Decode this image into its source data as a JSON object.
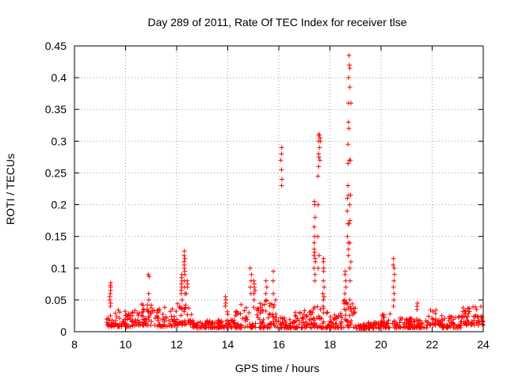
{
  "chart_data": {
    "type": "scatter",
    "title": "Day 289 of 2011, Rate Of TEC Index for receiver tlse",
    "xlabel": "GPS time / hours",
    "ylabel": "ROTI / TECUs",
    "xlim": [
      8,
      24
    ],
    "ylim": [
      0,
      0.45
    ],
    "xticks": [
      "8",
      "10",
      "12",
      "14",
      "16",
      "18",
      "20",
      "22",
      "24"
    ],
    "yticks": [
      "0",
      "0.05",
      "0.1",
      "0.15",
      "0.2",
      "0.25",
      "0.3",
      "0.35",
      "0.4",
      "0.45"
    ],
    "grid": true,
    "marker": "+",
    "color": "#ff0000",
    "background": [
      {
        "x_start": 9.25,
        "x_end": 9.6,
        "y_min": 0.008,
        "y_max": 0.03
      },
      {
        "x_start": 9.6,
        "x_end": 10.4,
        "y_min": 0.008,
        "y_max": 0.035
      },
      {
        "x_start": 10.4,
        "x_end": 11.2,
        "y_min": 0.01,
        "y_max": 0.045
      },
      {
        "x_start": 11.2,
        "x_end": 12.0,
        "y_min": 0.008,
        "y_max": 0.04
      },
      {
        "x_start": 12.0,
        "x_end": 12.6,
        "y_min": 0.01,
        "y_max": 0.045
      },
      {
        "x_start": 12.6,
        "x_end": 13.8,
        "y_min": 0.006,
        "y_max": 0.018
      },
      {
        "x_start": 13.8,
        "x_end": 14.5,
        "y_min": 0.006,
        "y_max": 0.035
      },
      {
        "x_start": 14.5,
        "x_end": 15.4,
        "y_min": 0.006,
        "y_max": 0.045
      },
      {
        "x_start": 15.4,
        "x_end": 16.0,
        "y_min": 0.006,
        "y_max": 0.05
      },
      {
        "x_start": 16.0,
        "x_end": 16.6,
        "y_min": 0.006,
        "y_max": 0.025
      },
      {
        "x_start": 16.6,
        "x_end": 17.2,
        "y_min": 0.006,
        "y_max": 0.035
      },
      {
        "x_start": 17.2,
        "x_end": 18.0,
        "y_min": 0.006,
        "y_max": 0.04
      },
      {
        "x_start": 18.0,
        "x_end": 18.5,
        "y_min": 0.006,
        "y_max": 0.03
      },
      {
        "x_start": 18.5,
        "x_end": 19.0,
        "y_min": 0.006,
        "y_max": 0.05
      },
      {
        "x_start": 19.0,
        "x_end": 20.0,
        "y_min": 0.005,
        "y_max": 0.015
      },
      {
        "x_start": 20.0,
        "x_end": 20.6,
        "y_min": 0.006,
        "y_max": 0.03
      },
      {
        "x_start": 20.6,
        "x_end": 21.8,
        "y_min": 0.006,
        "y_max": 0.022
      },
      {
        "x_start": 21.8,
        "x_end": 22.4,
        "y_min": 0.01,
        "y_max": 0.04
      },
      {
        "x_start": 22.4,
        "x_end": 23.2,
        "y_min": 0.006,
        "y_max": 0.025
      },
      {
        "x_start": 23.2,
        "x_end": 24.0,
        "y_min": 0.01,
        "y_max": 0.04
      }
    ],
    "spikes": [
      {
        "x": 9.4,
        "ys": [
          0.04,
          0.045,
          0.05,
          0.055,
          0.06,
          0.065,
          0.07,
          0.073,
          0.077
        ]
      },
      {
        "x": 10.9,
        "ys": [
          0.05,
          0.06,
          0.087,
          0.09
        ]
      },
      {
        "x": 12.2,
        "ys": [
          0.05,
          0.06,
          0.065,
          0.07,
          0.075,
          0.08,
          0.085,
          0.09
        ]
      },
      {
        "x": 12.3,
        "ys": [
          0.06,
          0.07,
          0.08,
          0.09,
          0.095,
          0.1,
          0.105,
          0.11,
          0.115,
          0.12,
          0.127
        ]
      },
      {
        "x": 12.4,
        "ys": [
          0.06,
          0.07,
          0.075,
          0.08
        ]
      },
      {
        "x": 13.9,
        "ys": [
          0.04,
          0.045,
          0.05,
          0.055
        ]
      },
      {
        "x": 14.9,
        "ys": [
          0.06,
          0.07,
          0.08,
          0.09,
          0.1
        ]
      },
      {
        "x": 15.05,
        "ys": [
          0.05,
          0.06,
          0.065,
          0.07,
          0.075,
          0.08
        ]
      },
      {
        "x": 15.5,
        "ys": [
          0.05,
          0.06,
          0.07,
          0.08
        ]
      },
      {
        "x": 15.8,
        "ys": [
          0.06,
          0.08,
          0.095
        ]
      },
      {
        "x": 16.1,
        "ys": [
          0.23,
          0.24,
          0.255,
          0.27,
          0.28,
          0.29
        ]
      },
      {
        "x": 17.4,
        "ys": [
          0.08,
          0.09,
          0.1,
          0.11,
          0.115,
          0.12,
          0.125,
          0.13,
          0.14,
          0.15,
          0.165,
          0.18,
          0.2,
          0.205
        ]
      },
      {
        "x": 17.55,
        "ys": [
          0.1,
          0.12,
          0.15,
          0.2,
          0.245,
          0.26,
          0.275,
          0.28,
          0.3,
          0.31
        ]
      },
      {
        "x": 17.6,
        "ys": [
          0.27,
          0.29,
          0.3,
          0.305,
          0.31
        ]
      },
      {
        "x": 17.75,
        "ys": [
          0.04,
          0.05,
          0.055,
          0.06,
          0.07,
          0.08,
          0.095,
          0.1,
          0.11,
          0.115
        ]
      },
      {
        "x": 18.6,
        "ys": [
          0.05,
          0.06,
          0.07,
          0.08,
          0.09,
          0.095
        ]
      },
      {
        "x": 18.7,
        "ys": [
          0.13,
          0.15,
          0.17,
          0.19,
          0.21,
          0.23,
          0.265,
          0.295,
          0.33
        ]
      },
      {
        "x": 18.75,
        "ys": [
          0.1,
          0.12,
          0.14,
          0.17,
          0.2,
          0.215,
          0.27,
          0.32,
          0.36,
          0.385,
          0.4,
          0.415,
          0.42,
          0.435
        ]
      },
      {
        "x": 18.8,
        "ys": [
          0.05,
          0.08,
          0.11,
          0.14,
          0.175,
          0.215,
          0.27,
          0.36
        ]
      },
      {
        "x": 20.5,
        "ys": [
          0.04,
          0.05,
          0.06,
          0.07,
          0.08,
          0.09,
          0.1,
          0.105,
          0.115
        ]
      },
      {
        "x": 21.4,
        "ys": [
          0.035,
          0.04,
          0.045
        ]
      }
    ]
  }
}
